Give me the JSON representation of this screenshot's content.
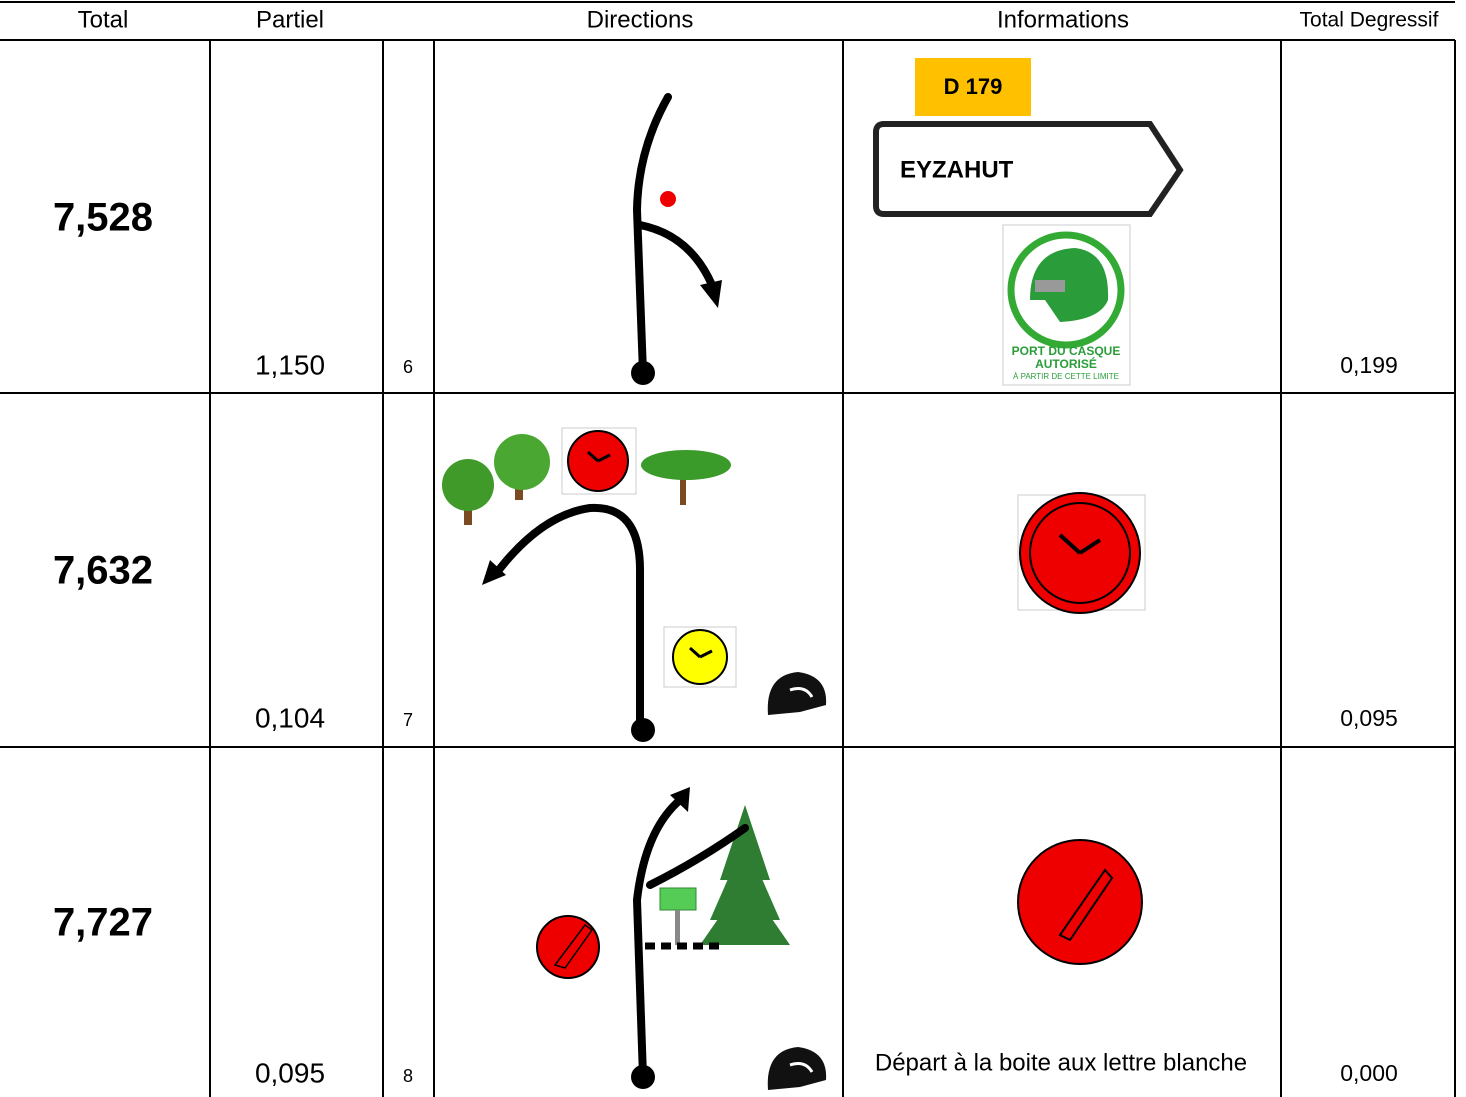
{
  "header": {
    "columns": [
      "Total",
      "Partiel",
      "Directions",
      "Informations",
      "Total Degressif"
    ]
  },
  "rows": [
    {
      "total": "7,528",
      "partiel": "1,150",
      "case": "6",
      "info": [
        "D 179",
        "EYZAHUT",
        "PORT DU CASQUE",
        "AUTORISÉ",
        "À PARTIR DE CETTE LIMITE"
      ],
      "degressif": "0,199"
    },
    {
      "total": "7,632",
      "partiel": "0,104",
      "case": "7",
      "degressif": "0,095"
    },
    {
      "total": "7,727",
      "partiel": "0,095",
      "case": "8",
      "info": [
        "Départ à la boite aux lettre blanche"
      ],
      "degressif": "0,000"
    }
  ]
}
